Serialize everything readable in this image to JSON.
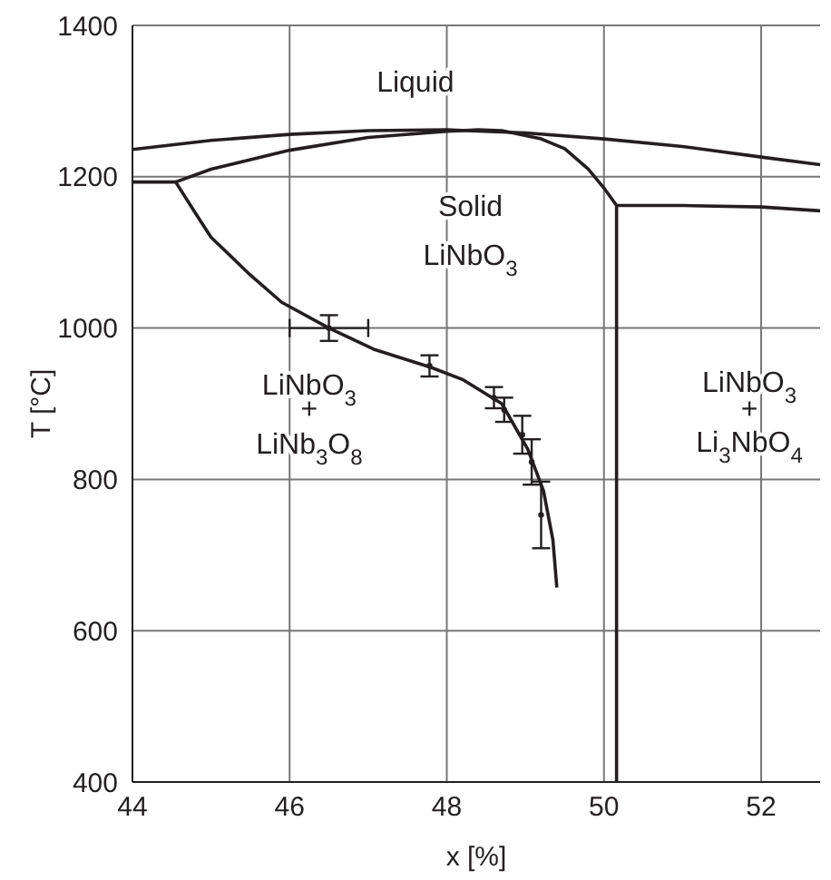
{
  "chart_data": {
    "type": "line",
    "xlabel": "x [%]",
    "ylabel": "T [°C]",
    "xlim": [
      44,
      52.75
    ],
    "ylim": [
      400,
      1400
    ],
    "xticks": [
      44,
      46,
      48,
      50,
      52
    ],
    "yticks": [
      400,
      600,
      800,
      1000,
      1200,
      1400
    ],
    "grid": true,
    "line_style": "solid",
    "series": [
      {
        "color": "#231f20",
        "x": [
          44,
          45,
          46,
          47,
          48,
          49,
          50,
          51,
          52,
          52.75
        ],
        "values": [
          1236,
          1248,
          1256,
          1261,
          1262,
          1258,
          1250,
          1240,
          1226,
          1216
        ]
      },
      {
        "color": "#231f20",
        "x": [
          44,
          44.55,
          45,
          46,
          47,
          48,
          48.4,
          48.7,
          49.2,
          49.5,
          49.8,
          50,
          50.16,
          50.16
        ],
        "values": [
          1193,
          1193,
          1210,
          1235,
          1252,
          1260,
          1262,
          1261,
          1250,
          1237,
          1210,
          1185,
          1162,
          400
        ]
      },
      {
        "color": "#231f20",
        "x": [
          50.16,
          51,
          52,
          52.75
        ],
        "values": [
          1162,
          1162,
          1160,
          1155
        ]
      },
      {
        "color": "#231f20",
        "x": [
          44.55,
          44.8,
          45,
          45.5,
          45.9,
          46.5,
          47.07,
          47.8,
          48.2,
          48.7,
          49.03,
          49.23,
          49.35,
          49.4
        ],
        "values": [
          1193,
          1152,
          1120,
          1070,
          1034,
          1000,
          972,
          948,
          932,
          900,
          840,
          785,
          720,
          657
        ]
      },
      {
        "type": "scatter",
        "color": "#231f20",
        "x": [
          46.5,
          47.78,
          48.6,
          48.73,
          48.96,
          49.08,
          49.2
        ],
        "values": [
          1000,
          950,
          908,
          892,
          859,
          823,
          753
        ],
        "errors": [
          17,
          14,
          14,
          16,
          25,
          30,
          44
        ],
        "xerrors": [
          0.5,
          null,
          null,
          null,
          null,
          null,
          null
        ]
      }
    ],
    "annotations": [
      "Liquid",
      "Solid",
      "LiNbO$_{3}$",
      "LiNbO$_{3}$",
      "+",
      "LiNb$_{3}$O$_{8}$",
      "LiNbO$_{3}$",
      "+",
      "Li$_{3}$NbO$_{4}$"
    ]
  }
}
